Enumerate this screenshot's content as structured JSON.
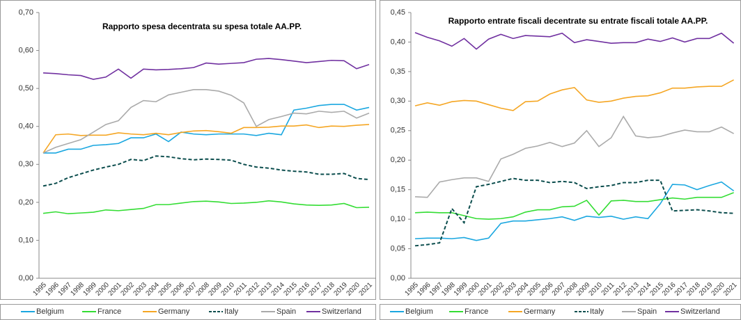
{
  "chart_data": [
    {
      "type": "line",
      "title": "Rapporto spesa decentrata su spesa totale AA.PP.",
      "categories": [
        "1995",
        "1996",
        "1997",
        "1998",
        "1999",
        "2000",
        "2001",
        "2002",
        "2003",
        "2004",
        "2005",
        "2006",
        "2007",
        "2008",
        "2009",
        "2010",
        "2011",
        "2012",
        "2013",
        "2014",
        "2015",
        "2016",
        "2017",
        "2018",
        "2019",
        "2020",
        "2021"
      ],
      "ylim": [
        0,
        0.7
      ],
      "yticks": [
        {
          "value": 0,
          "label": "0,00"
        },
        {
          "value": 0.1,
          "label": "0,10"
        },
        {
          "value": 0.2,
          "label": "0,20"
        },
        {
          "value": 0.3,
          "label": "0,30"
        },
        {
          "value": 0.4,
          "label": "0,40"
        },
        {
          "value": 0.5,
          "label": "0,50"
        },
        {
          "value": 0.6,
          "label": "0,60"
        },
        {
          "value": 0.7,
          "label": "0,70"
        }
      ],
      "series": [
        {
          "name": "Belgium",
          "color": "#1aa7e0",
          "values": [
            0.33,
            0.33,
            0.34,
            0.34,
            0.35,
            0.352,
            0.355,
            0.37,
            0.37,
            0.38,
            0.36,
            0.385,
            0.38,
            0.378,
            0.38,
            0.38,
            0.38,
            0.376,
            0.382,
            0.378,
            0.443,
            0.448,
            0.455,
            0.458,
            0.458,
            0.443,
            0.45
          ]
        },
        {
          "name": "France",
          "color": "#33dd33",
          "values": [
            0.171,
            0.175,
            0.17,
            0.172,
            0.174,
            0.18,
            0.178,
            0.181,
            0.184,
            0.194,
            0.194,
            0.198,
            0.202,
            0.203,
            0.201,
            0.197,
            0.198,
            0.2,
            0.204,
            0.201,
            0.196,
            0.193,
            0.192,
            0.193,
            0.197,
            0.186,
            0.187
          ]
        },
        {
          "name": "Germany",
          "color": "#f5a623",
          "values": [
            0.33,
            0.378,
            0.38,
            0.376,
            0.377,
            0.377,
            0.383,
            0.38,
            0.378,
            0.382,
            0.378,
            0.384,
            0.388,
            0.389,
            0.386,
            0.382,
            0.397,
            0.397,
            0.398,
            0.401,
            0.401,
            0.404,
            0.397,
            0.401,
            0.4,
            0.403,
            0.405
          ]
        },
        {
          "name": "Italy",
          "color": "#0b4d4d",
          "dashed": true,
          "values": [
            0.243,
            0.25,
            0.265,
            0.275,
            0.285,
            0.293,
            0.3,
            0.313,
            0.31,
            0.322,
            0.32,
            0.315,
            0.312,
            0.314,
            0.313,
            0.311,
            0.3,
            0.293,
            0.29,
            0.285,
            0.282,
            0.28,
            0.274,
            0.274,
            0.276,
            0.263,
            0.26
          ]
        },
        {
          "name": "Spain",
          "color": "#aaaaaa",
          "values": [
            0.33,
            0.345,
            0.355,
            0.365,
            0.385,
            0.405,
            0.415,
            0.45,
            0.468,
            0.465,
            0.483,
            0.49,
            0.497,
            0.497,
            0.493,
            0.482,
            0.462,
            0.4,
            0.418,
            0.426,
            0.435,
            0.433,
            0.44,
            0.437,
            0.44,
            0.422,
            0.435
          ]
        },
        {
          "name": "Switzerland",
          "color": "#7030a0",
          "values": [
            0.541,
            0.539,
            0.536,
            0.534,
            0.524,
            0.53,
            0.551,
            0.527,
            0.551,
            0.549,
            0.55,
            0.552,
            0.555,
            0.567,
            0.564,
            0.566,
            0.568,
            0.577,
            0.579,
            0.576,
            0.572,
            0.568,
            0.571,
            0.574,
            0.573,
            0.552,
            0.563
          ]
        }
      ]
    },
    {
      "type": "line",
      "title": "Rapporto entrate fiscali decentrate su entrate fiscali totale AA.PP.",
      "categories": [
        "1995",
        "1996",
        "1997",
        "1998",
        "1999",
        "2000",
        "2001",
        "2002",
        "2003",
        "2004",
        "2005",
        "2006",
        "2007",
        "2008",
        "2009",
        "2010",
        "2011",
        "2012",
        "2013",
        "2014",
        "2015",
        "2016",
        "2017",
        "2018",
        "2019",
        "2020",
        "2021"
      ],
      "ylim": [
        0,
        0.45
      ],
      "yticks": [
        {
          "value": 0,
          "label": "0,00"
        },
        {
          "value": 0.05,
          "label": "0,05"
        },
        {
          "value": 0.1,
          "label": "0,10"
        },
        {
          "value": 0.15,
          "label": "0,15"
        },
        {
          "value": 0.2,
          "label": "0,20"
        },
        {
          "value": 0.25,
          "label": "0,25"
        },
        {
          "value": 0.3,
          "label": "0,30"
        },
        {
          "value": 0.35,
          "label": "0,35"
        },
        {
          "value": 0.4,
          "label": "0,40"
        },
        {
          "value": 0.45,
          "label": "0,45"
        }
      ],
      "series": [
        {
          "name": "Belgium",
          "color": "#1aa7e0",
          "values": [
            0.067,
            0.068,
            0.068,
            0.067,
            0.069,
            0.064,
            0.068,
            0.093,
            0.097,
            0.097,
            0.099,
            0.101,
            0.104,
            0.098,
            0.105,
            0.103,
            0.105,
            0.1,
            0.104,
            0.101,
            0.126,
            0.159,
            0.158,
            0.15,
            0.157,
            0.163,
            0.148
          ]
        },
        {
          "name": "France",
          "color": "#33dd33",
          "values": [
            0.111,
            0.112,
            0.111,
            0.111,
            0.106,
            0.101,
            0.1,
            0.101,
            0.104,
            0.112,
            0.116,
            0.116,
            0.121,
            0.122,
            0.132,
            0.107,
            0.131,
            0.132,
            0.13,
            0.13,
            0.133,
            0.136,
            0.134,
            0.137,
            0.137,
            0.137,
            0.145
          ]
        },
        {
          "name": "Germany",
          "color": "#f5a623",
          "values": [
            0.292,
            0.297,
            0.293,
            0.299,
            0.301,
            0.3,
            0.294,
            0.288,
            0.284,
            0.299,
            0.3,
            0.312,
            0.319,
            0.323,
            0.302,
            0.298,
            0.3,
            0.305,
            0.308,
            0.309,
            0.314,
            0.322,
            0.322,
            0.324,
            0.325,
            0.325,
            0.336
          ]
        },
        {
          "name": "Italy",
          "color": "#0b4d4d",
          "dashed": true,
          "values": [
            0.055,
            0.057,
            0.06,
            0.118,
            0.094,
            0.155,
            0.159,
            0.164,
            0.169,
            0.166,
            0.166,
            0.162,
            0.164,
            0.162,
            0.152,
            0.155,
            0.157,
            0.162,
            0.162,
            0.166,
            0.166,
            0.114,
            0.115,
            0.116,
            0.114,
            0.111,
            0.11
          ]
        },
        {
          "name": "Spain",
          "color": "#aaaaaa",
          "values": [
            0.138,
            0.137,
            0.163,
            0.167,
            0.17,
            0.17,
            0.164,
            0.202,
            0.21,
            0.22,
            0.224,
            0.23,
            0.223,
            0.229,
            0.25,
            0.223,
            0.238,
            0.274,
            0.241,
            0.238,
            0.24,
            0.246,
            0.251,
            0.248,
            0.248,
            0.256,
            0.245
          ]
        },
        {
          "name": "Switzerland",
          "color": "#7030a0",
          "values": [
            0.416,
            0.408,
            0.402,
            0.393,
            0.406,
            0.388,
            0.405,
            0.413,
            0.406,
            0.411,
            0.41,
            0.409,
            0.415,
            0.399,
            0.404,
            0.401,
            0.398,
            0.399,
            0.399,
            0.405,
            0.401,
            0.407,
            0.4,
            0.406,
            0.406,
            0.415,
            0.398
          ]
        }
      ]
    }
  ]
}
